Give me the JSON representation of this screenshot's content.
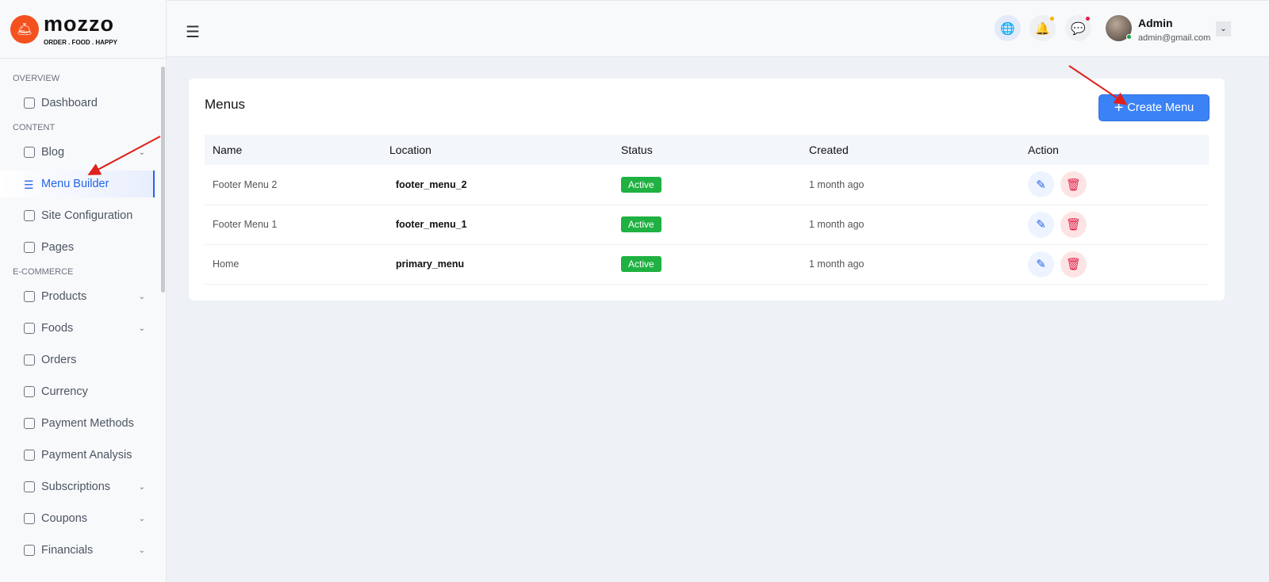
{
  "brand": {
    "name": "mozzo",
    "tagline": "ORDER . FOOD . HAPPY",
    "color": "#f4511e"
  },
  "sidebar": {
    "sections": [
      {
        "label": "OVERVIEW",
        "items": [
          {
            "label": "Dashboard",
            "icon": "home-icon"
          }
        ]
      },
      {
        "label": "CONTENT",
        "items": [
          {
            "label": "Blog",
            "icon": "blog-icon",
            "chevron": true
          },
          {
            "label": "Menu Builder",
            "icon": "menu-icon",
            "active": true
          },
          {
            "label": "Site Configuration",
            "icon": "config-icon"
          },
          {
            "label": "Pages",
            "icon": "page-icon"
          }
        ]
      },
      {
        "label": "E-COMMERCE",
        "items": [
          {
            "label": "Products",
            "icon": "box-icon",
            "chevron": true
          },
          {
            "label": "Foods",
            "icon": "box-icon",
            "chevron": true
          },
          {
            "label": "Orders",
            "icon": "clipboard-icon"
          },
          {
            "label": "Currency",
            "icon": "currency-icon"
          },
          {
            "label": "Payment Methods",
            "icon": "card-icon"
          },
          {
            "label": "Payment Analysis",
            "icon": "chart-icon"
          },
          {
            "label": "Subscriptions",
            "icon": "package-icon",
            "chevron": true
          },
          {
            "label": "Coupons",
            "icon": "coupon-icon",
            "chevron": true
          },
          {
            "label": "Financials",
            "icon": "financials-icon",
            "chevron": true
          }
        ]
      }
    ]
  },
  "topbar": {
    "user": {
      "name": "Admin",
      "email": "admin@gmail.com"
    }
  },
  "main": {
    "title": "Menus",
    "create_label": "Create Menu",
    "columns": [
      "Name",
      "Location",
      "Status",
      "Created",
      "Action"
    ],
    "rows": [
      {
        "name": "Footer Menu 2",
        "location": "footer_menu_2",
        "status": "Active",
        "created": "1 month ago"
      },
      {
        "name": "Footer Menu 1",
        "location": "footer_menu_1",
        "status": "Active",
        "created": "1 month ago"
      },
      {
        "name": "Home",
        "location": "primary_menu",
        "status": "Active",
        "created": "1 month ago"
      }
    ]
  },
  "colors": {
    "accent": "#3b82f6",
    "active": "#1fb141",
    "danger": "#e11d48"
  }
}
